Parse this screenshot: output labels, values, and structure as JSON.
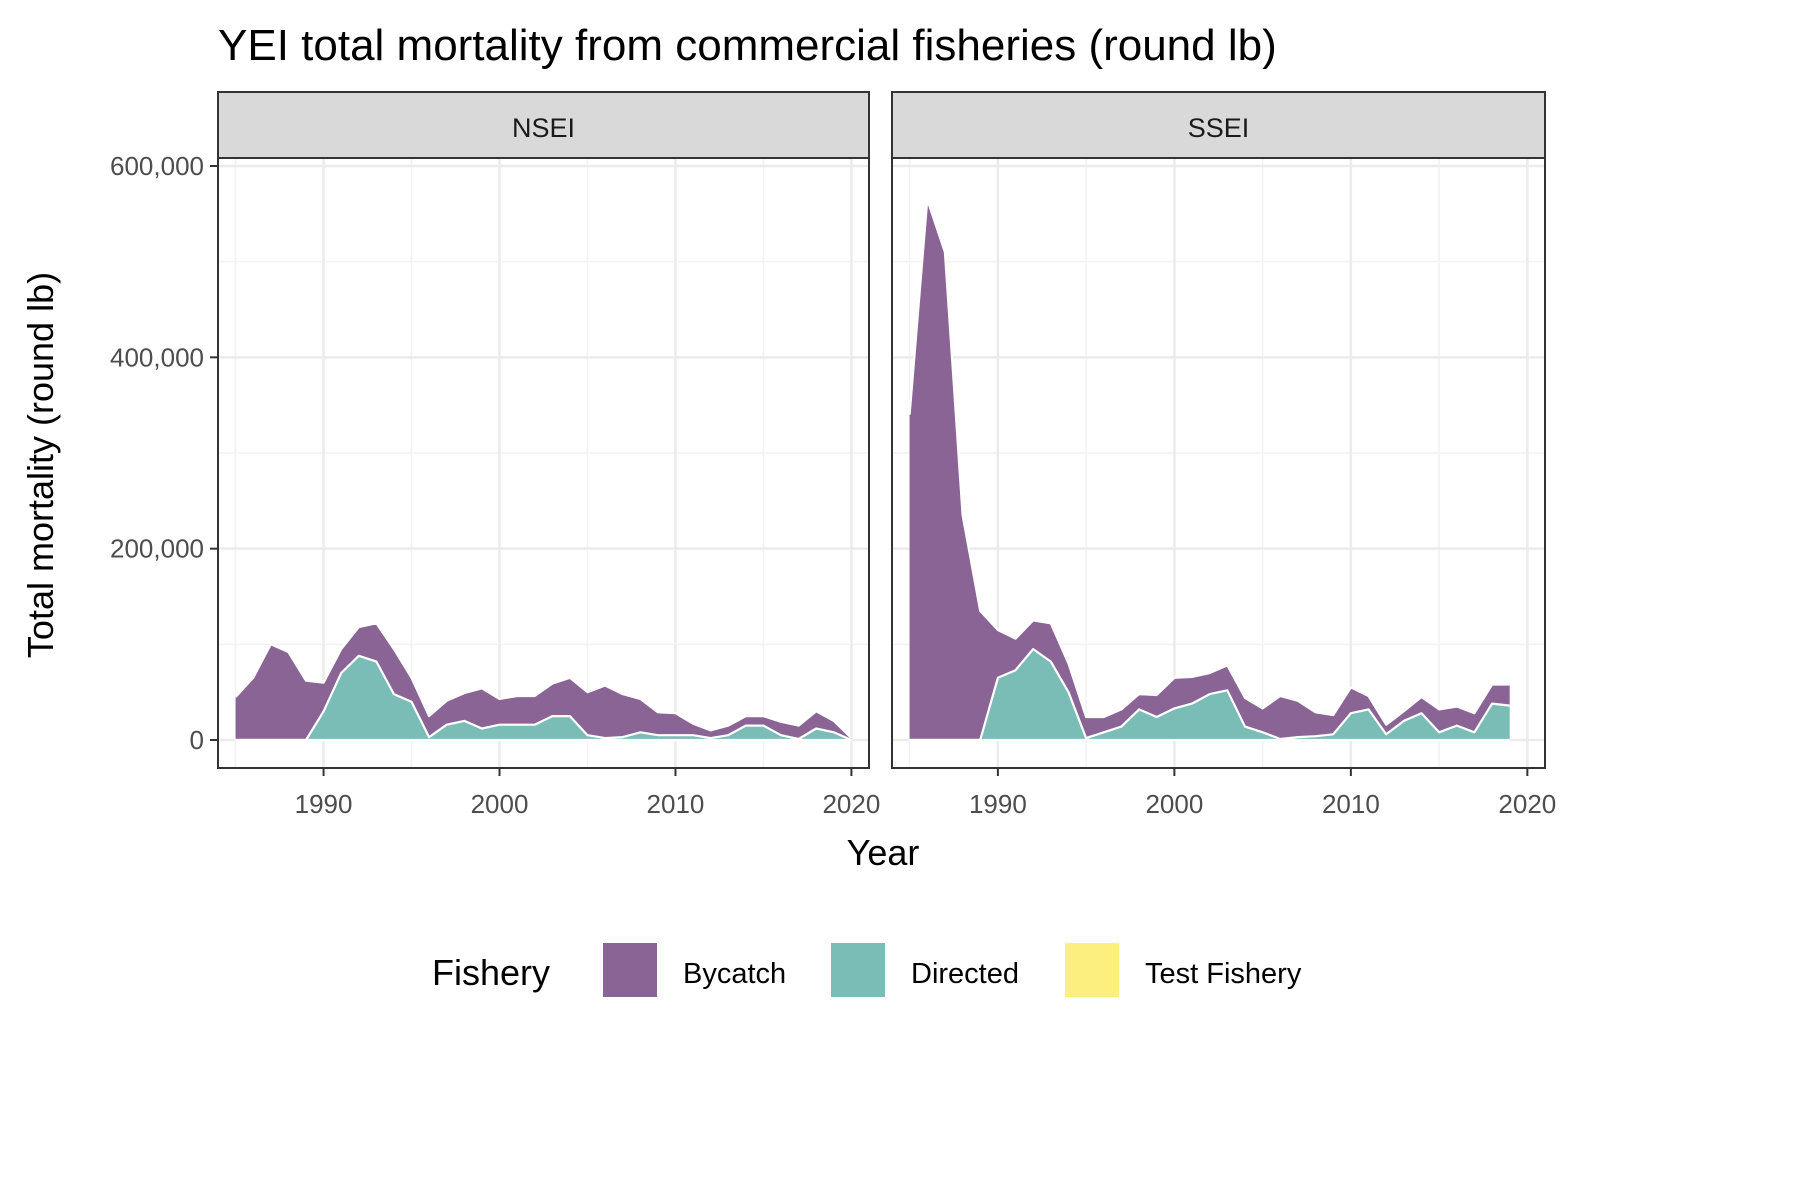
{
  "chart_data": {
    "type": "area",
    "stacked": true,
    "title": "YEI total mortality from commercial fisheries (round lb)",
    "xlabel": "Year",
    "ylabel": "Total mortality (round lb)",
    "xlim": [
      1984,
      2021
    ],
    "ylim": [
      -27000,
      600000
    ],
    "x_ticks": [
      1990,
      2000,
      2010,
      2020
    ],
    "x_tick_labels": [
      "1990",
      "2000",
      "2010",
      "2020"
    ],
    "y_ticks": [
      0,
      200000,
      400000,
      600000
    ],
    "y_tick_labels": [
      "0",
      "200,000",
      "400,000",
      "600,000"
    ],
    "grid": true,
    "legend": {
      "title": "Fishery",
      "position": "bottom",
      "entries": [
        {
          "name": "Bycatch",
          "color": "#8b6496"
        },
        {
          "name": "Directed",
          "color": "#7abcb6"
        },
        {
          "name": "Test Fishery",
          "color": "#fdef7d"
        }
      ]
    },
    "colors": {
      "Bycatch": "#8b6496",
      "Directed": "#7abcb6",
      "Test Fishery": "#fdef7d"
    },
    "panels": [
      {
        "name": "NSEI",
        "x": [
          1985,
          1986,
          1987,
          1988,
          1989,
          1990,
          1991,
          1992,
          1993,
          1994,
          1995,
          1996,
          1997,
          1998,
          1999,
          2000,
          2001,
          2002,
          2003,
          2004,
          2005,
          2006,
          2007,
          2008,
          2009,
          2010,
          2011,
          2012,
          2013,
          2014,
          2015,
          2016,
          2017,
          2018,
          2019,
          2020
        ],
        "series": [
          {
            "name": "Directed",
            "values": [
              0,
              0,
              0,
              0,
              0,
              30000,
              70000,
              88000,
              82000,
              48000,
              40000,
              3000,
              16000,
              20000,
              12000,
              16000,
              16000,
              16000,
              25000,
              25000,
              5000,
              2000,
              3000,
              8000,
              5000,
              5000,
              5000,
              2000,
              5000,
              15000,
              15000,
              5000,
              1000,
              12000,
              8000,
              0
            ]
          },
          {
            "name": "Bycatch",
            "values": [
              45000,
              65000,
              100000,
              92000,
              62000,
              30000,
              25000,
              30000,
              40000,
              47000,
              25000,
              22000,
              25000,
              29000,
              42000,
              27000,
              30000,
              30000,
              34000,
              40000,
              45000,
              55000,
              45000,
              35000,
              24000,
              23000,
              12000,
              8000,
              10000,
              10000,
              10000,
              14000,
              14000,
              18000,
              12000,
              2000
            ]
          },
          {
            "name": "Test Fishery",
            "values": [
              0,
              0,
              0,
              0,
              0,
              0,
              0,
              0,
              0,
              0,
              0,
              0,
              0,
              0,
              0,
              0,
              0,
              0,
              0,
              0,
              0,
              0,
              0,
              0,
              0,
              0,
              0,
              0,
              0,
              0,
              0,
              0,
              0,
              0,
              0,
              0
            ]
          }
        ]
      },
      {
        "name": "SSEI",
        "x": [
          1985,
          1986,
          1987,
          1988,
          1989,
          1990,
          1991,
          1992,
          1993,
          1994,
          1995,
          1996,
          1997,
          1998,
          1999,
          2000,
          2001,
          2002,
          2003,
          2004,
          2005,
          2006,
          2007,
          2008,
          2009,
          2010,
          2011,
          2012,
          2013,
          2014,
          2015,
          2016,
          2017,
          2018,
          2019
        ],
        "series": [
          {
            "name": "Directed",
            "values": [
              0,
              0,
              0,
              0,
              0,
              65000,
              73000,
              95000,
              82000,
              50000,
              2000,
              8000,
              14000,
              32000,
              24000,
              33000,
              38000,
              48000,
              52000,
              14000,
              8000,
              1000,
              3000,
              4000,
              6000,
              28000,
              32000,
              6000,
              20000,
              28000,
              8000,
              15000,
              8000,
              38000,
              36000
            ]
          },
          {
            "name": "Bycatch",
            "values": [
              340000,
              565000,
              510000,
              235000,
              135000,
              50000,
              33000,
              30000,
              40000,
              30000,
              22000,
              16000,
              18000,
              16000,
              23000,
              32000,
              28000,
              22000,
              26000,
              30000,
              25000,
              45000,
              38000,
              25000,
              20000,
              27000,
              14000,
              10000,
              10000,
              17000,
              24000,
              20000,
              20000,
              20000,
              22000
            ]
          },
          {
            "name": "Test Fishery",
            "values": [
              0,
              0,
              0,
              0,
              0,
              0,
              0,
              0,
              0,
              0,
              0,
              0,
              0,
              0,
              0,
              0,
              0,
              0,
              0,
              0,
              0,
              0,
              0,
              0,
              0,
              0,
              0,
              0,
              0,
              0,
              0,
              0,
              0,
              0,
              0
            ]
          }
        ]
      }
    ]
  }
}
